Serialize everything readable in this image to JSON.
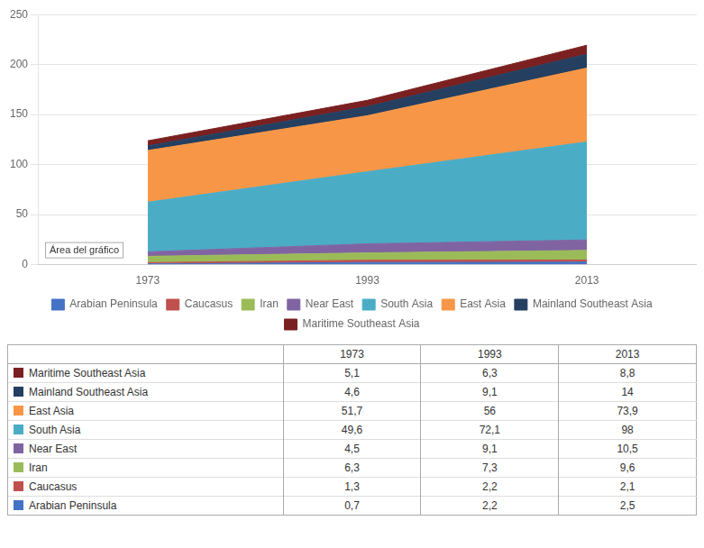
{
  "chart_data": {
    "type": "area",
    "stacked": true,
    "categories": [
      "1973",
      "1993",
      "2013"
    ],
    "series": [
      {
        "name": "Arabian Peninsula",
        "color": "#4472C4",
        "values": [
          0.7,
          2.2,
          2.5
        ],
        "value_labels": [
          "0,7",
          "2,2",
          "2,5"
        ]
      },
      {
        "name": "Caucasus",
        "color": "#C0504D",
        "values": [
          1.3,
          2.2,
          2.1
        ],
        "value_labels": [
          "1,3",
          "2,2",
          "2,1"
        ]
      },
      {
        "name": "Iran",
        "color": "#9BBB59",
        "values": [
          6.3,
          7.3,
          9.6
        ],
        "value_labels": [
          "6,3",
          "7,3",
          "9,6"
        ]
      },
      {
        "name": "Near East",
        "color": "#8064A2",
        "values": [
          4.5,
          9.1,
          10.5
        ],
        "value_labels": [
          "4,5",
          "9,1",
          "10,5"
        ]
      },
      {
        "name": "South Asia",
        "color": "#4BACC6",
        "values": [
          49.6,
          72.1,
          98.0
        ],
        "value_labels": [
          "49,6",
          "72,1",
          "98"
        ]
      },
      {
        "name": "East Asia",
        "color": "#F79646",
        "values": [
          51.7,
          56.0,
          73.9
        ],
        "value_labels": [
          "51,7",
          "56",
          "73,9"
        ]
      },
      {
        "name": "Mainland Southeast Asia",
        "color": "#243F60",
        "values": [
          4.6,
          9.1,
          14.0
        ],
        "value_labels": [
          "4,6",
          "9,1",
          "14"
        ]
      },
      {
        "name": "Maritime Southeast Asia",
        "color": "#7B2020",
        "values": [
          5.1,
          6.3,
          8.8
        ],
        "value_labels": [
          "5,1",
          "6,3",
          "8,8"
        ]
      }
    ],
    "ylim": [
      0,
      250
    ],
    "yticks": [
      0,
      50,
      100,
      150,
      200,
      250
    ],
    "grid": "y",
    "legend": "bottom",
    "annotations": [
      {
        "text": "Área del gráfico"
      }
    ]
  }
}
